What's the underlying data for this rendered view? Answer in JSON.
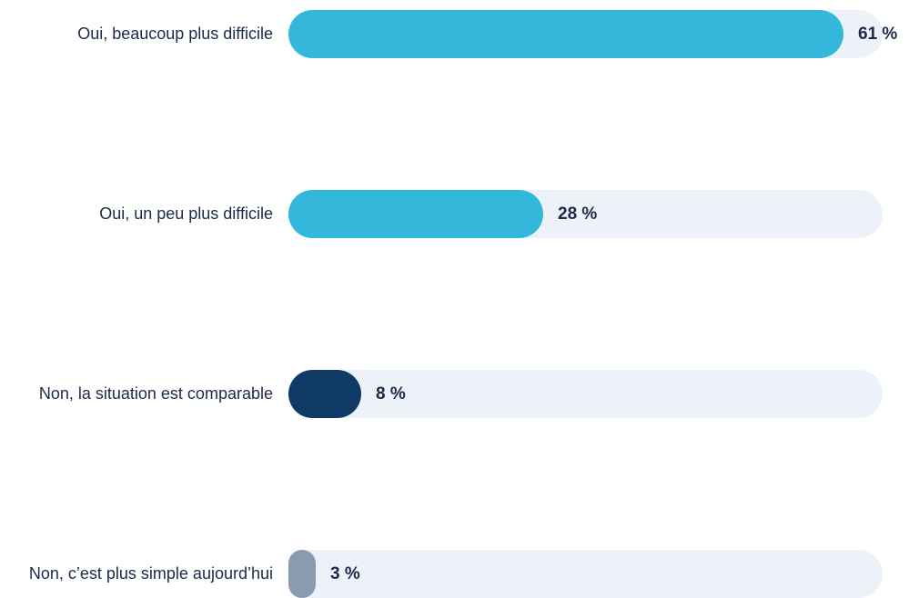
{
  "chart_data": {
    "type": "bar",
    "orientation": "horizontal",
    "categories": [
      "Oui, beaucoup plus difficile",
      "Oui, un peu plus difficile",
      "Non, la situation est comparable",
      "Non, c’est plus simple aujourd’hui"
    ],
    "values": [
      61,
      28,
      8,
      3
    ],
    "value_labels": [
      "61 %",
      "28 %",
      "8 %",
      "3 %"
    ],
    "colors": [
      "#33b8dc",
      "#33b8dc",
      "#0f3a66",
      "#8a9bb0"
    ],
    "xlim": [
      0,
      65
    ]
  }
}
